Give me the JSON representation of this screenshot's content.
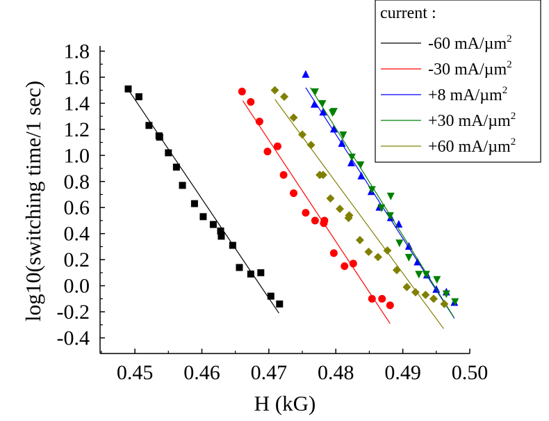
{
  "chart_data": {
    "type": "scatter",
    "xlabel": "H (kG)",
    "ylabel": "log10(switching time/1 sec)",
    "xlim": [
      0.4448,
      0.5
    ],
    "ylim": [
      -0.52,
      1.84
    ],
    "xticks": [
      "0.45",
      "0.46",
      "0.47",
      "0.48",
      "0.49",
      "0.50"
    ],
    "xtick_values": [
      0.45,
      0.46,
      0.47,
      0.48,
      0.49,
      0.5
    ],
    "yticks": [
      "-0.4",
      "-0.2",
      "0.0",
      "0.2",
      "0.4",
      "0.6",
      "0.8",
      "1.0",
      "1.2",
      "1.4",
      "1.6",
      "1.8"
    ],
    "ytick_values": [
      -0.4,
      -0.2,
      0.0,
      0.2,
      0.4,
      0.6,
      0.8,
      1.0,
      1.2,
      1.4,
      1.6,
      1.8
    ],
    "grid": false,
    "legend": {
      "title": "current :",
      "placement": "top-right",
      "unit_base": "mA/µm",
      "unit_sup": "2"
    },
    "series": [
      {
        "name": "-60",
        "color": "#000000",
        "marker": "square",
        "fit": [
          [
            0.4492,
            1.49
          ],
          [
            0.4715,
            -0.21
          ]
        ],
        "points": [
          [
            0.449,
            1.51
          ],
          [
            0.4506,
            1.45
          ],
          [
            0.4521,
            1.23
          ],
          [
            0.4536,
            1.15
          ],
          [
            0.4537,
            1.14
          ],
          [
            0.455,
            1.02
          ],
          [
            0.4562,
            0.91
          ],
          [
            0.4571,
            0.77
          ],
          [
            0.4589,
            0.63
          ],
          [
            0.4602,
            0.53
          ],
          [
            0.4617,
            0.47
          ],
          [
            0.4628,
            0.42
          ],
          [
            0.4629,
            0.38
          ],
          [
            0.4646,
            0.31
          ],
          [
            0.4656,
            0.14
          ],
          [
            0.4673,
            0.09
          ],
          [
            0.4688,
            0.1
          ],
          [
            0.4703,
            -0.08
          ],
          [
            0.4716,
            -0.14
          ]
        ]
      },
      {
        "name": "-30",
        "color": "#ff0000",
        "marker": "circle",
        "fit": [
          [
            0.4661,
            1.42
          ],
          [
            0.4881,
            -0.29
          ]
        ],
        "points": [
          [
            0.466,
            1.49
          ],
          [
            0.4673,
            1.41
          ],
          [
            0.4686,
            1.26
          ],
          [
            0.4698,
            1.03
          ],
          [
            0.4713,
            1.07
          ],
          [
            0.4722,
            0.85
          ],
          [
            0.4737,
            0.71
          ],
          [
            0.4755,
            0.56
          ],
          [
            0.4769,
            0.5
          ],
          [
            0.4782,
            0.48
          ],
          [
            0.4783,
            0.5
          ],
          [
            0.4797,
            0.25
          ],
          [
            0.4813,
            0.15
          ],
          [
            0.4826,
            0.17
          ],
          [
            0.4854,
            -0.1
          ],
          [
            0.4869,
            -0.1
          ],
          [
            0.4881,
            -0.15
          ]
        ]
      },
      {
        "name": "+8",
        "color": "#0000ff",
        "marker": "triangle-up",
        "fit": [
          [
            0.4755,
            1.52
          ],
          [
            0.4977,
            -0.25
          ]
        ],
        "points": [
          [
            0.4755,
            1.62
          ],
          [
            0.4768,
            1.39
          ],
          [
            0.4781,
            1.33
          ],
          [
            0.4797,
            1.2
          ],
          [
            0.4809,
            1.09
          ],
          [
            0.4823,
            0.94
          ],
          [
            0.4838,
            0.84
          ],
          [
            0.4853,
            0.72
          ],
          [
            0.4865,
            0.6
          ],
          [
            0.4882,
            0.52
          ],
          [
            0.4894,
            0.47
          ],
          [
            0.4909,
            0.3
          ],
          [
            0.4922,
            0.18
          ],
          [
            0.4936,
            0.08
          ],
          [
            0.495,
            -0.03
          ],
          [
            0.4965,
            -0.05
          ],
          [
            0.4977,
            -0.13
          ]
        ]
      },
      {
        "name": "+30",
        "color": "#008000",
        "marker": "triangle-down",
        "fit": [
          [
            0.4762,
            1.52
          ],
          [
            0.4976,
            -0.24
          ]
        ],
        "points": [
          [
            0.4769,
            1.49
          ],
          [
            0.478,
            1.4
          ],
          [
            0.4795,
            1.33
          ],
          [
            0.4797,
            1.34
          ],
          [
            0.4811,
            1.16
          ],
          [
            0.4824,
            0.99
          ],
          [
            0.4837,
            0.93
          ],
          [
            0.4854,
            0.74
          ],
          [
            0.4868,
            0.6
          ],
          [
            0.4882,
            0.69
          ],
          [
            0.4881,
            0.54
          ],
          [
            0.4895,
            0.33
          ],
          [
            0.4909,
            0.22
          ],
          [
            0.4924,
            0.09
          ],
          [
            0.4935,
            0.09
          ],
          [
            0.4951,
            0.05
          ],
          [
            0.4965,
            -0.06
          ],
          [
            0.4978,
            -0.12
          ]
        ]
      },
      {
        "name": "+60",
        "color": "#808000",
        "marker": "diamond",
        "fit": [
          [
            0.4709,
            1.43
          ],
          [
            0.4961,
            -0.33
          ]
        ],
        "points": [
          [
            0.4709,
            1.5
          ],
          [
            0.4723,
            1.45
          ],
          [
            0.4737,
            1.29
          ],
          [
            0.475,
            1.16
          ],
          [
            0.4763,
            1.08
          ],
          [
            0.4776,
            0.85
          ],
          [
            0.4781,
            0.85
          ],
          [
            0.4792,
            0.67
          ],
          [
            0.4806,
            0.59
          ],
          [
            0.4819,
            0.52
          ],
          [
            0.482,
            0.54
          ],
          [
            0.4836,
            0.35
          ],
          [
            0.4849,
            0.26
          ],
          [
            0.4863,
            0.22
          ],
          [
            0.4877,
            0.27
          ],
          [
            0.4891,
            0.12
          ],
          [
            0.4906,
            -0.01
          ],
          [
            0.4919,
            -0.05
          ],
          [
            0.4934,
            -0.07
          ],
          [
            0.4946,
            -0.1
          ],
          [
            0.4962,
            -0.14
          ]
        ]
      }
    ]
  }
}
